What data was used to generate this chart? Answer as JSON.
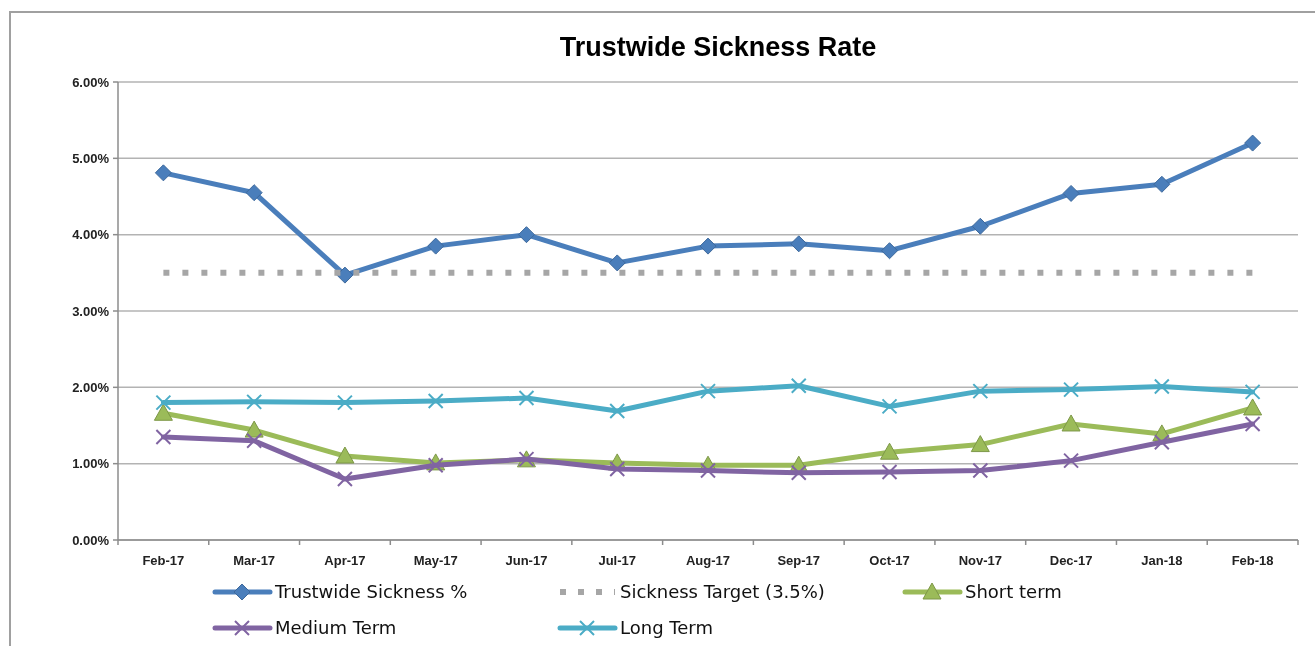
{
  "chart_data": {
    "type": "line",
    "title": "Trustwide Sickness Rate",
    "categories": [
      "Feb-17",
      "Mar-17",
      "Apr-17",
      "May-17",
      "Jun-17",
      "Jul-17",
      "Aug-17",
      "Sep-17",
      "Oct-17",
      "Nov-17",
      "Dec-17",
      "Jan-18",
      "Feb-18"
    ],
    "ylim": [
      0,
      6
    ],
    "yticks": [
      {
        "value": 0,
        "label": "0.00%"
      },
      {
        "value": 1,
        "label": "1.00%"
      },
      {
        "value": 2,
        "label": "2.00%"
      },
      {
        "value": 3,
        "label": "3.00%"
      },
      {
        "value": 4,
        "label": "4.00%"
      },
      {
        "value": 5,
        "label": "5.00%"
      },
      {
        "value": 6,
        "label": "6.00%"
      }
    ],
    "grid": "y",
    "legend": "bottom",
    "series": [
      {
        "name": "Trustwide Sickness %",
        "color": "#4a7ebb",
        "marker": "diamond",
        "values": [
          4.81,
          4.55,
          3.47,
          3.85,
          4.0,
          3.63,
          3.85,
          3.88,
          3.79,
          4.11,
          4.54,
          4.66,
          5.2
        ]
      },
      {
        "name": "Sickness Target (3.5%)",
        "color": "#a6a6a6",
        "marker": "none",
        "line_style": "dotted",
        "values": [
          3.5,
          3.5,
          3.5,
          3.5,
          3.5,
          3.5,
          3.5,
          3.5,
          3.5,
          3.5,
          3.5,
          3.5,
          3.5
        ]
      },
      {
        "name": "Short term",
        "color": "#9bbb59",
        "marker": "triangle",
        "values": [
          1.66,
          1.44,
          1.1,
          1.01,
          1.05,
          1.01,
          0.98,
          0.98,
          1.15,
          1.25,
          1.52,
          1.39,
          1.73
        ]
      },
      {
        "name": "Medium Term",
        "color": "#8064a2",
        "marker": "cross",
        "values": [
          1.35,
          1.3,
          0.8,
          0.98,
          1.06,
          0.93,
          0.91,
          0.88,
          0.89,
          0.91,
          1.04,
          1.28,
          1.52
        ]
      },
      {
        "name": "Long Term",
        "color": "#4bacc6",
        "marker": "cross",
        "values": [
          1.8,
          1.81,
          1.8,
          1.82,
          1.86,
          1.69,
          1.95,
          2.02,
          1.75,
          1.95,
          1.97,
          2.01,
          1.94
        ]
      }
    ]
  }
}
